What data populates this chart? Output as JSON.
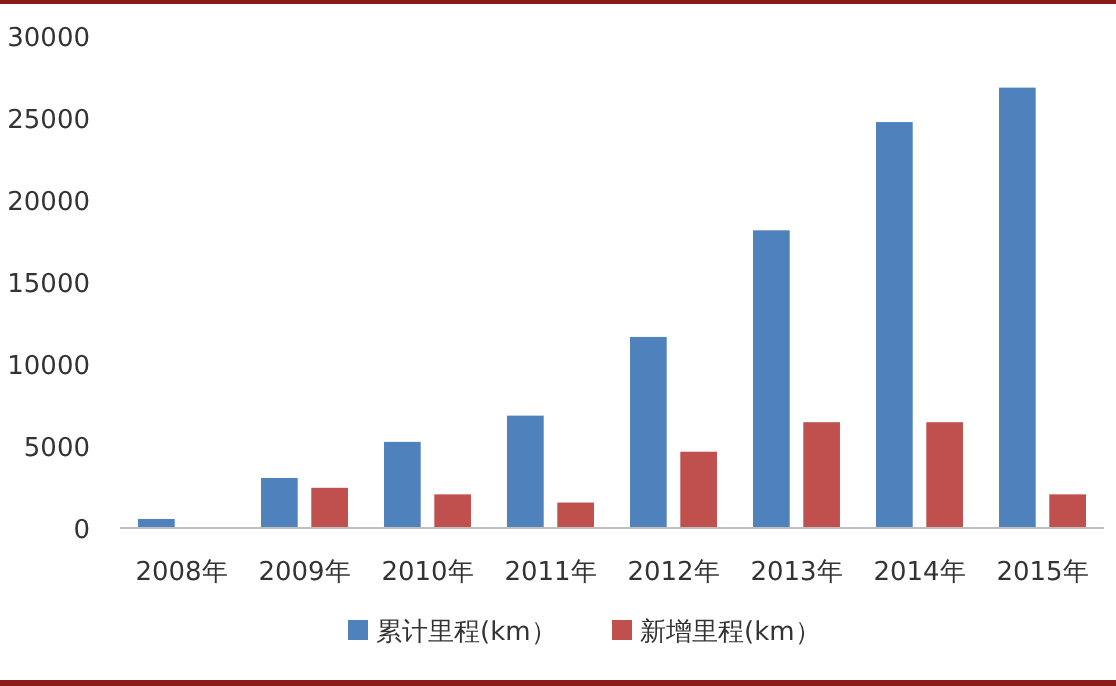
{
  "chart_data": {
    "type": "bar",
    "categories": [
      "2008年",
      "2009年",
      "2010年",
      "2011年",
      "2012年",
      "2013年",
      "2014年",
      "2015年"
    ],
    "series": [
      {
        "name": "累计里程(km）",
        "color": "#4f81bd",
        "values": [
          600,
          3100,
          5300,
          6900,
          11700,
          18200,
          24800,
          26900
        ]
      },
      {
        "name": "新增里程(km）",
        "color": "#c0504d",
        "values": [
          null,
          2500,
          2100,
          1600,
          4700,
          6500,
          6500,
          2100
        ]
      }
    ],
    "ylim": [
      0,
      30000
    ],
    "yticks": [
      0,
      5000,
      10000,
      15000,
      20000,
      25000,
      30000
    ],
    "legend": "bottom"
  }
}
